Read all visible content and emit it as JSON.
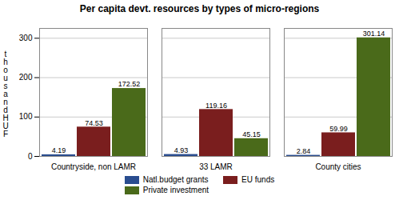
{
  "chart_data": {
    "type": "bar",
    "title": "Per capita devt. resources by types of micro-regions",
    "y_label": "thousandHUF",
    "categories": [
      "Countryside, non LAMR",
      "33 LAMR",
      "County cities"
    ],
    "series": [
      {
        "name": "Natl.budget grants",
        "color": "#2a4d8f",
        "values": [
          4.19,
          4.93,
          2.84
        ]
      },
      {
        "name": "EU funds",
        "color": "#7a1e1e",
        "values": [
          74.53,
          119.16,
          59.99
        ]
      },
      {
        "name": "Private investment",
        "color": "#4a6a1a",
        "values": [
          172.52,
          45.15,
          301.14
        ]
      }
    ],
    "ylim": [
      0,
      325
    ],
    "yticks": [
      0,
      100,
      200,
      300
    ],
    "grid": true,
    "data_labels": true,
    "legend": "bottom"
  }
}
